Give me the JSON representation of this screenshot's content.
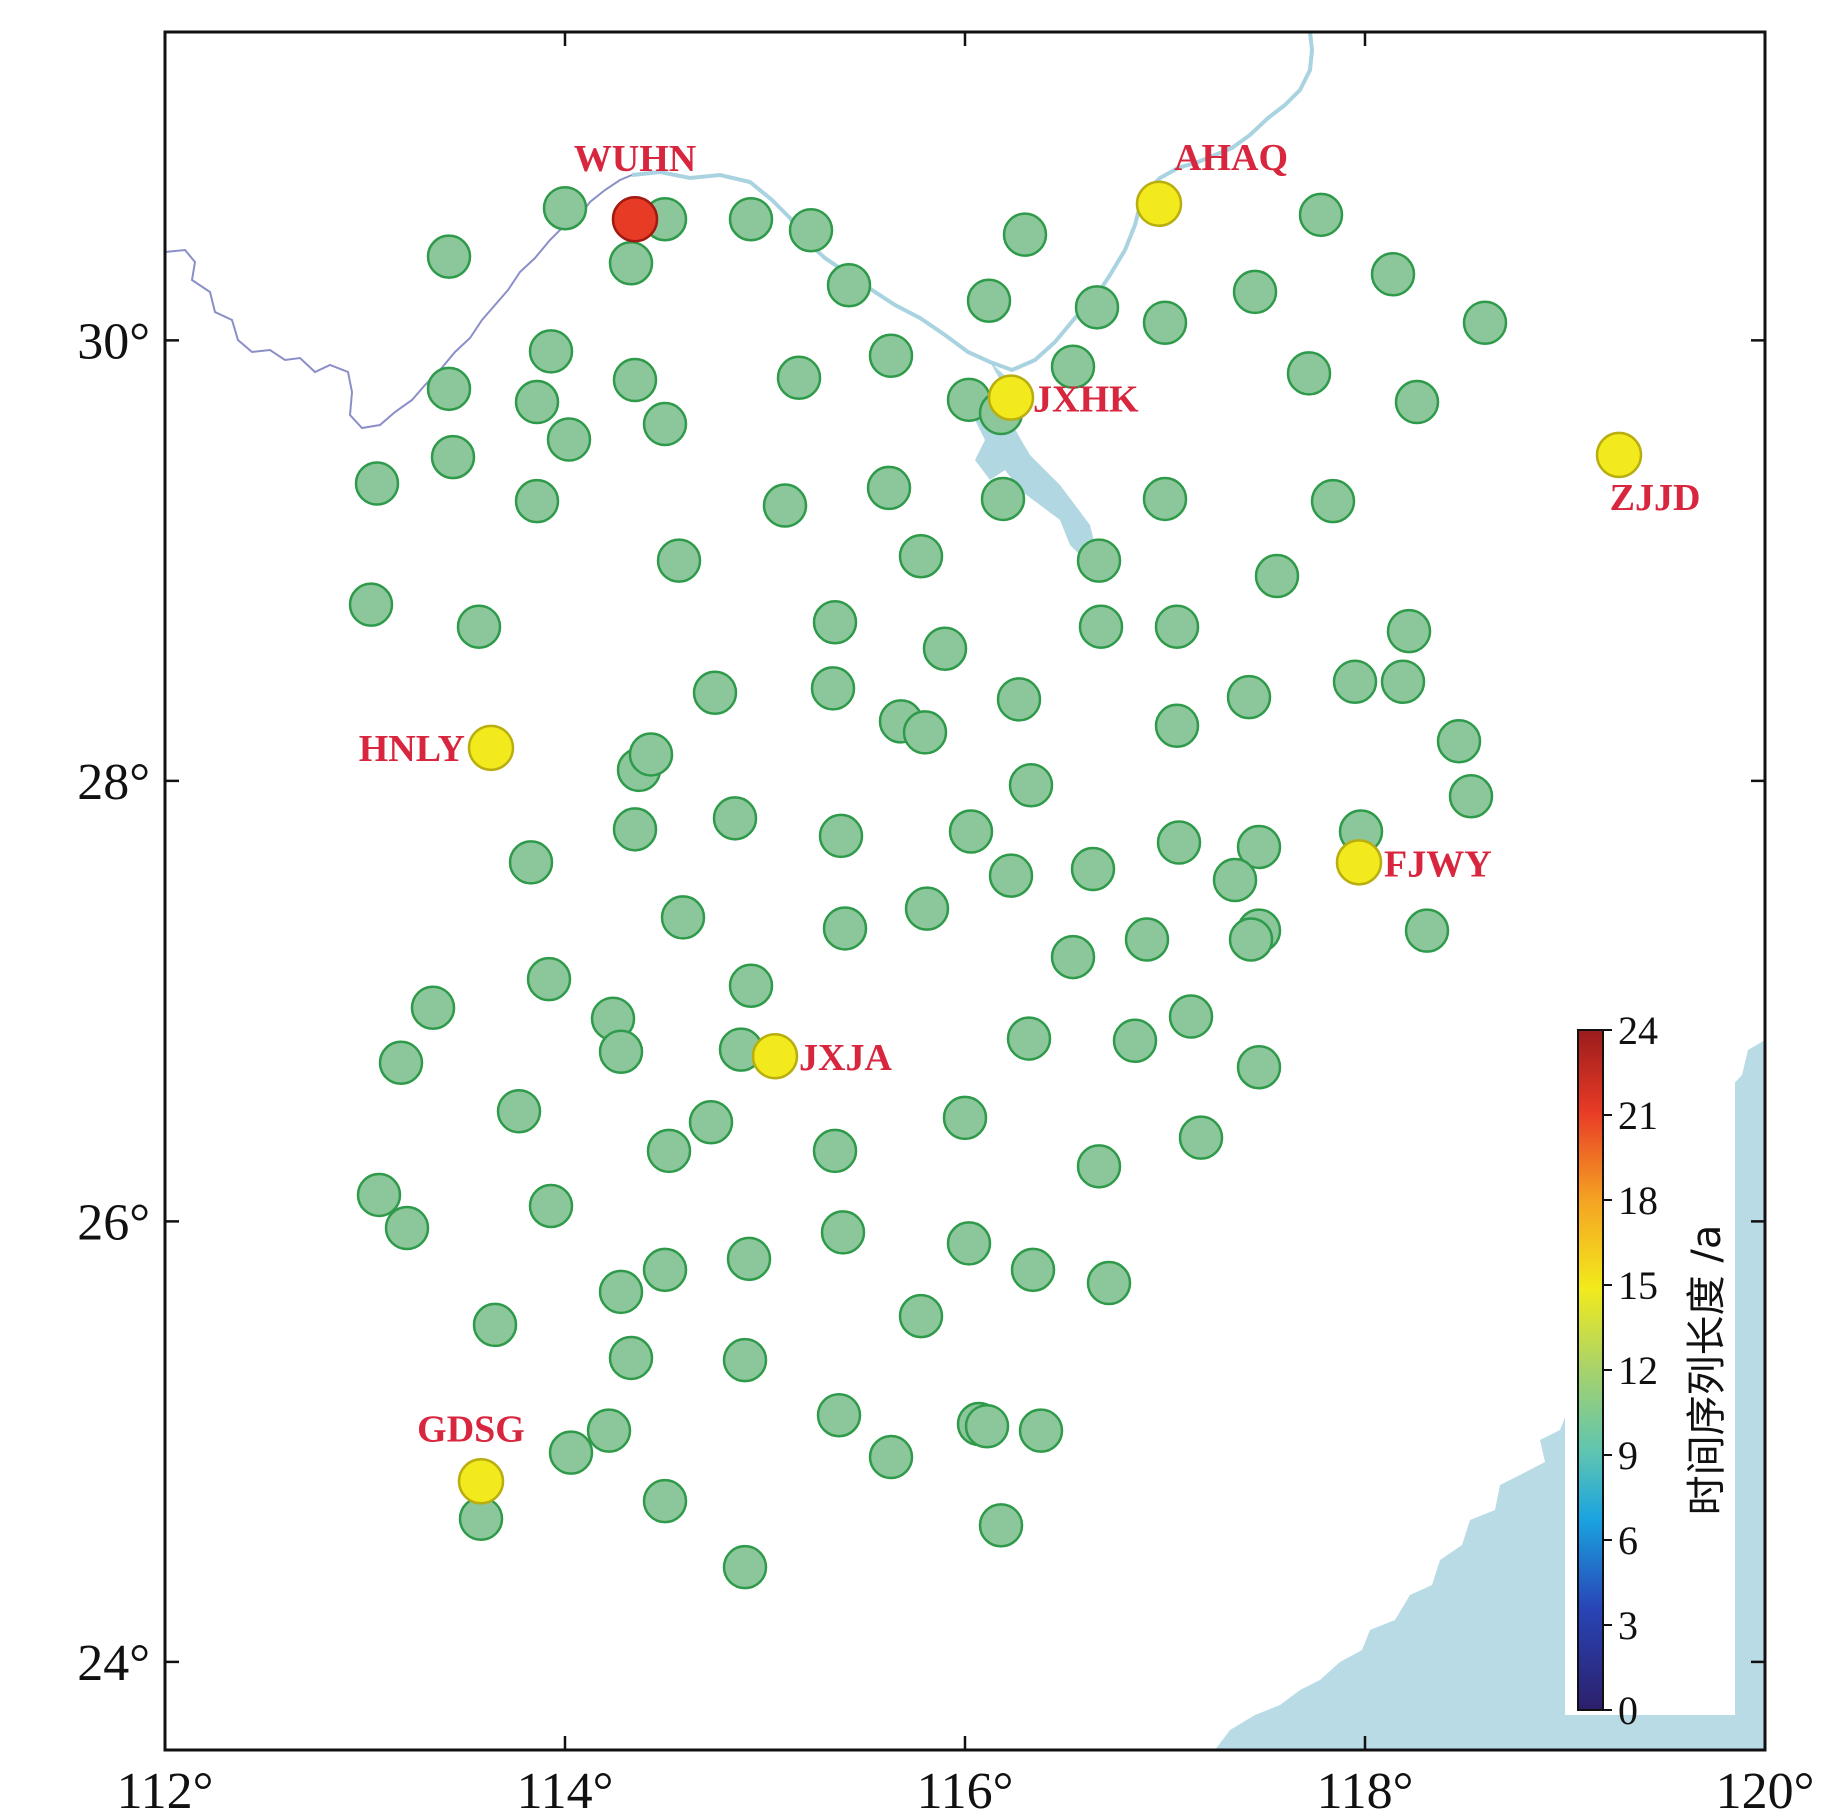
{
  "map": {
    "lon_range": [
      112,
      120
    ],
    "lat_range": [
      23.6,
      31.4
    ],
    "x_ticks": [
      112,
      114,
      116,
      118,
      120
    ],
    "y_ticks": [
      24,
      26,
      28,
      30
    ],
    "x_tick_labels": [
      "112°",
      "114°",
      "116°",
      "118°",
      "120°"
    ],
    "y_tick_labels": [
      "24°",
      "26°",
      "28°",
      "30°"
    ],
    "colors": {
      "sea": "#b9dbe6",
      "river": "#a9d3e0",
      "boundary": "#8b8fc7",
      "green_fill": "#8cc79b",
      "green_stroke": "#2e9a4a",
      "yellow_fill": "#f2ea1c",
      "red_fill": "#e83b26"
    }
  },
  "colorbar": {
    "title": "时间序列长度 /a",
    "ticks": [
      "24",
      "21",
      "18",
      "15",
      "12",
      "9",
      "6",
      "3",
      "0"
    ],
    "range": [
      0,
      24
    ],
    "gradient": [
      "#2c1f6b",
      "#2845b6",
      "#1aa3e0",
      "#5fc5b1",
      "#a7d26b",
      "#f2ea1c",
      "#f5a323",
      "#e83b26",
      "#9b1c1c"
    ]
  },
  "labeled_stations": [
    {
      "name": "WUHN",
      "lon": 114.35,
      "lat": 30.55,
      "color": "red"
    },
    {
      "name": "AHAQ",
      "lon": 116.97,
      "lat": 30.62,
      "color": "yellow"
    },
    {
      "name": "JXHK",
      "lon": 116.23,
      "lat": 29.74,
      "color": "yellow"
    },
    {
      "name": "ZJJD",
      "lon": 119.27,
      "lat": 29.48,
      "color": "yellow"
    },
    {
      "name": "HNLY",
      "lon": 113.63,
      "lat": 28.15,
      "color": "yellow"
    },
    {
      "name": "FJWY",
      "lon": 117.97,
      "lat": 27.63,
      "color": "yellow"
    },
    {
      "name": "JXJA",
      "lon": 115.05,
      "lat": 26.75,
      "color": "yellow"
    },
    {
      "name": "GDSG",
      "lon": 113.58,
      "lat": 24.82,
      "color": "yellow"
    }
  ],
  "green_stations": [
    [
      114.0,
      30.6
    ],
    [
      114.5,
      30.55
    ],
    [
      113.42,
      30.38
    ],
    [
      114.33,
      30.35
    ],
    [
      114.93,
      30.55
    ],
    [
      115.23,
      30.5
    ],
    [
      116.3,
      30.48
    ],
    [
      115.42,
      30.25
    ],
    [
      116.12,
      30.18
    ],
    [
      116.66,
      30.15
    ],
    [
      117.0,
      30.08
    ],
    [
      117.45,
      30.22
    ],
    [
      117.78,
      30.57
    ],
    [
      118.14,
      30.3
    ],
    [
      118.6,
      30.08
    ],
    [
      113.93,
      29.95
    ],
    [
      113.42,
      29.78
    ],
    [
      114.35,
      29.82
    ],
    [
      113.86,
      29.72
    ],
    [
      114.02,
      29.55
    ],
    [
      114.5,
      29.62
    ],
    [
      115.17,
      29.83
    ],
    [
      115.63,
      29.93
    ],
    [
      116.02,
      29.73
    ],
    [
      116.18,
      29.67
    ],
    [
      116.54,
      29.88
    ],
    [
      117.72,
      29.85
    ],
    [
      118.26,
      29.72
    ],
    [
      113.44,
      29.47
    ],
    [
      113.06,
      29.35
    ],
    [
      113.86,
      29.27
    ],
    [
      115.1,
      29.25
    ],
    [
      115.62,
      29.33
    ],
    [
      116.19,
      29.28
    ],
    [
      117.0,
      29.28
    ],
    [
      117.84,
      29.27
    ],
    [
      114.57,
      29.0
    ],
    [
      115.78,
      29.02
    ],
    [
      116.67,
      29.0
    ],
    [
      117.56,
      28.93
    ],
    [
      113.03,
      28.8
    ],
    [
      113.57,
      28.7
    ],
    [
      115.35,
      28.72
    ],
    [
      115.9,
      28.6
    ],
    [
      116.68,
      28.7
    ],
    [
      117.06,
      28.7
    ],
    [
      118.22,
      28.68
    ],
    [
      114.75,
      28.4
    ],
    [
      115.34,
      28.42
    ],
    [
      115.68,
      28.27
    ],
    [
      115.8,
      28.22
    ],
    [
      116.27,
      28.37
    ],
    [
      117.06,
      28.25
    ],
    [
      117.42,
      28.38
    ],
    [
      117.95,
      28.45
    ],
    [
      118.19,
      28.45
    ],
    [
      118.47,
      28.18
    ],
    [
      114.37,
      28.05
    ],
    [
      114.43,
      28.12
    ],
    [
      116.33,
      27.98
    ],
    [
      118.53,
      27.93
    ],
    [
      114.35,
      27.78
    ],
    [
      114.85,
      27.83
    ],
    [
      115.38,
      27.75
    ],
    [
      116.03,
      27.77
    ],
    [
      117.07,
      27.72
    ],
    [
      117.47,
      27.7
    ],
    [
      117.98,
      27.77
    ],
    [
      113.83,
      27.63
    ],
    [
      116.23,
      27.57
    ],
    [
      116.64,
      27.6
    ],
    [
      117.35,
      27.55
    ],
    [
      114.59,
      27.38
    ],
    [
      115.4,
      27.33
    ],
    [
      115.81,
      27.42
    ],
    [
      116.54,
      27.2
    ],
    [
      116.91,
      27.28
    ],
    [
      117.47,
      27.32
    ],
    [
      117.43,
      27.28
    ],
    [
      118.31,
      27.32
    ],
    [
      113.92,
      27.1
    ],
    [
      114.93,
      27.07
    ],
    [
      113.34,
      26.97
    ],
    [
      114.24,
      26.92
    ],
    [
      114.88,
      26.78
    ],
    [
      114.28,
      26.77
    ],
    [
      116.32,
      26.83
    ],
    [
      116.85,
      26.82
    ],
    [
      117.13,
      26.93
    ],
    [
      117.47,
      26.7
    ],
    [
      113.18,
      26.72
    ],
    [
      113.77,
      26.5
    ],
    [
      114.73,
      26.45
    ],
    [
      114.52,
      26.32
    ],
    [
      115.35,
      26.32
    ],
    [
      116.0,
      26.47
    ],
    [
      116.67,
      26.25
    ],
    [
      117.18,
      26.38
    ],
    [
      113.07,
      26.12
    ],
    [
      113.21,
      25.97
    ],
    [
      113.93,
      26.07
    ],
    [
      115.39,
      25.95
    ],
    [
      116.02,
      25.9
    ],
    [
      114.5,
      25.78
    ],
    [
      114.92,
      25.83
    ],
    [
      116.34,
      25.78
    ],
    [
      116.72,
      25.72
    ],
    [
      114.28,
      25.68
    ],
    [
      113.65,
      25.53
    ],
    [
      115.78,
      25.57
    ],
    [
      114.33,
      25.38
    ],
    [
      114.9,
      25.37
    ],
    [
      114.22,
      25.05
    ],
    [
      115.37,
      25.12
    ],
    [
      116.07,
      25.08
    ],
    [
      116.11,
      25.07
    ],
    [
      116.38,
      25.05
    ],
    [
      114.03,
      24.95
    ],
    [
      115.63,
      24.93
    ],
    [
      113.58,
      24.65
    ],
    [
      114.5,
      24.73
    ],
    [
      116.18,
      24.62
    ],
    [
      114.9,
      24.43
    ]
  ]
}
